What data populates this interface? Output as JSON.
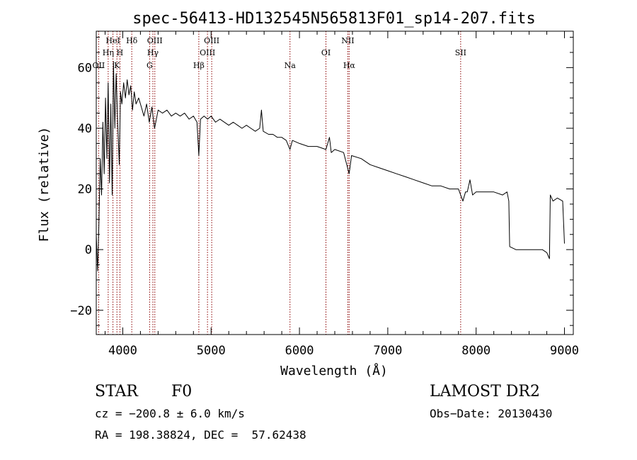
{
  "chart_data": {
    "type": "line",
    "title": "spec-56413-HD132545N565813F01_sp14-207.fits",
    "xlabel": "Wavelength (Å)",
    "ylabel": "Flux (relative)",
    "xlim": [
      3700,
      9100
    ],
    "ylim": [
      -28,
      72
    ],
    "x_ticks": [
      4000,
      5000,
      6000,
      7000,
      8000,
      9000
    ],
    "y_ticks": [
      -20,
      0,
      20,
      40,
      60
    ],
    "grid": false,
    "line_color": "#000000",
    "marker_color": "#8b0000",
    "series": [
      {
        "points": [
          [
            3700,
            5
          ],
          [
            3715,
            -7
          ],
          [
            3730,
            8
          ],
          [
            3745,
            30
          ],
          [
            3760,
            18
          ],
          [
            3775,
            42
          ],
          [
            3790,
            25
          ],
          [
            3805,
            50
          ],
          [
            3820,
            30
          ],
          [
            3835,
            55
          ],
          [
            3850,
            22
          ],
          [
            3865,
            48
          ],
          [
            3880,
            18
          ],
          [
            3895,
            62
          ],
          [
            3910,
            40
          ],
          [
            3925,
            58
          ],
          [
            3940,
            44
          ],
          [
            3960,
            28
          ],
          [
            3975,
            52
          ],
          [
            3990,
            48
          ],
          [
            4010,
            55
          ],
          [
            4030,
            50
          ],
          [
            4050,
            56
          ],
          [
            4070,
            51
          ],
          [
            4090,
            54
          ],
          [
            4110,
            46
          ],
          [
            4130,
            52
          ],
          [
            4150,
            48
          ],
          [
            4180,
            50
          ],
          [
            4210,
            47
          ],
          [
            4240,
            44
          ],
          [
            4270,
            48
          ],
          [
            4300,
            42
          ],
          [
            4330,
            47
          ],
          [
            4360,
            40
          ],
          [
            4400,
            46
          ],
          [
            4450,
            45
          ],
          [
            4500,
            46
          ],
          [
            4550,
            44
          ],
          [
            4600,
            45
          ],
          [
            4650,
            44
          ],
          [
            4700,
            45
          ],
          [
            4750,
            43
          ],
          [
            4800,
            44
          ],
          [
            4840,
            42
          ],
          [
            4861,
            31
          ],
          [
            4880,
            43
          ],
          [
            4920,
            44
          ],
          [
            4960,
            43
          ],
          [
            5000,
            44
          ],
          [
            5050,
            42
          ],
          [
            5100,
            43
          ],
          [
            5150,
            42
          ],
          [
            5200,
            41
          ],
          [
            5250,
            42
          ],
          [
            5300,
            41
          ],
          [
            5350,
            40
          ],
          [
            5400,
            41
          ],
          [
            5450,
            40
          ],
          [
            5500,
            39
          ],
          [
            5550,
            40
          ],
          [
            5570,
            46
          ],
          [
            5590,
            39
          ],
          [
            5650,
            38
          ],
          [
            5700,
            38
          ],
          [
            5750,
            37
          ],
          [
            5800,
            37
          ],
          [
            5850,
            36
          ],
          [
            5893,
            33
          ],
          [
            5920,
            36
          ],
          [
            6000,
            35
          ],
          [
            6100,
            34
          ],
          [
            6200,
            34
          ],
          [
            6300,
            33
          ],
          [
            6340,
            37
          ],
          [
            6360,
            32
          ],
          [
            6400,
            33
          ],
          [
            6500,
            32
          ],
          [
            6563,
            25
          ],
          [
            6590,
            31
          ],
          [
            6700,
            30
          ],
          [
            6800,
            28
          ],
          [
            6900,
            27
          ],
          [
            7000,
            26
          ],
          [
            7100,
            25
          ],
          [
            7200,
            24
          ],
          [
            7300,
            23
          ],
          [
            7400,
            22
          ],
          [
            7500,
            21
          ],
          [
            7600,
            21
          ],
          [
            7700,
            20
          ],
          [
            7800,
            20
          ],
          [
            7850,
            16
          ],
          [
            7880,
            19
          ],
          [
            7900,
            19
          ],
          [
            7930,
            23
          ],
          [
            7960,
            18
          ],
          [
            8000,
            19
          ],
          [
            8100,
            19
          ],
          [
            8200,
            19
          ],
          [
            8300,
            18
          ],
          [
            8350,
            19
          ],
          [
            8370,
            16
          ],
          [
            8380,
            1
          ],
          [
            8450,
            0
          ],
          [
            8550,
            0
          ],
          [
            8650,
            0
          ],
          [
            8750,
            0
          ],
          [
            8800,
            -1
          ],
          [
            8830,
            -3
          ],
          [
            8840,
            18
          ],
          [
            8870,
            16
          ],
          [
            8920,
            17
          ],
          [
            8980,
            16
          ],
          [
            9000,
            2
          ]
        ]
      }
    ],
    "lines": [
      {
        "label": "OII",
        "wavelength": 3727,
        "row": 3
      },
      {
        "label": "Hη",
        "wavelength": 3835,
        "row": 2
      },
      {
        "label": "HeI",
        "wavelength": 3889,
        "row": 1
      },
      {
        "label": "K",
        "wavelength": 3934,
        "row": 3
      },
      {
        "label": "H",
        "wavelength": 3968,
        "row": 2
      },
      {
        "label": "Hδ",
        "wavelength": 4102,
        "row": 1
      },
      {
        "label": "G",
        "wavelength": 4304,
        "row": 3
      },
      {
        "label": "Hγ",
        "wavelength": 4341,
        "row": 2
      },
      {
        "label": "OIII",
        "wavelength": 4363,
        "row": 1
      },
      {
        "label": "Hβ",
        "wavelength": 4861,
        "row": 3
      },
      {
        "label": "OIII",
        "wavelength": 4959,
        "row": 2
      },
      {
        "label": "OIII",
        "wavelength": 5007,
        "row": 1
      },
      {
        "label": "Na",
        "wavelength": 5893,
        "row": 3
      },
      {
        "label": "OI",
        "wavelength": 6300,
        "row": 2
      },
      {
        "label": "NII",
        "wavelength": 6548,
        "row": 1
      },
      {
        "label": "Hα",
        "wavelength": 6563,
        "row": 3
      },
      {
        "label": "SII",
        "wavelength": 7825,
        "row": 2
      }
    ]
  },
  "info": {
    "object_class": "STAR",
    "subclass": "F0",
    "survey": "LAMOST DR2",
    "cz": "cz = −200.8 ± 6.0 km/s",
    "obs_date": "Obs−Date: 20130430",
    "coords": "RA = 198.38824, DEC =  57.62438"
  }
}
